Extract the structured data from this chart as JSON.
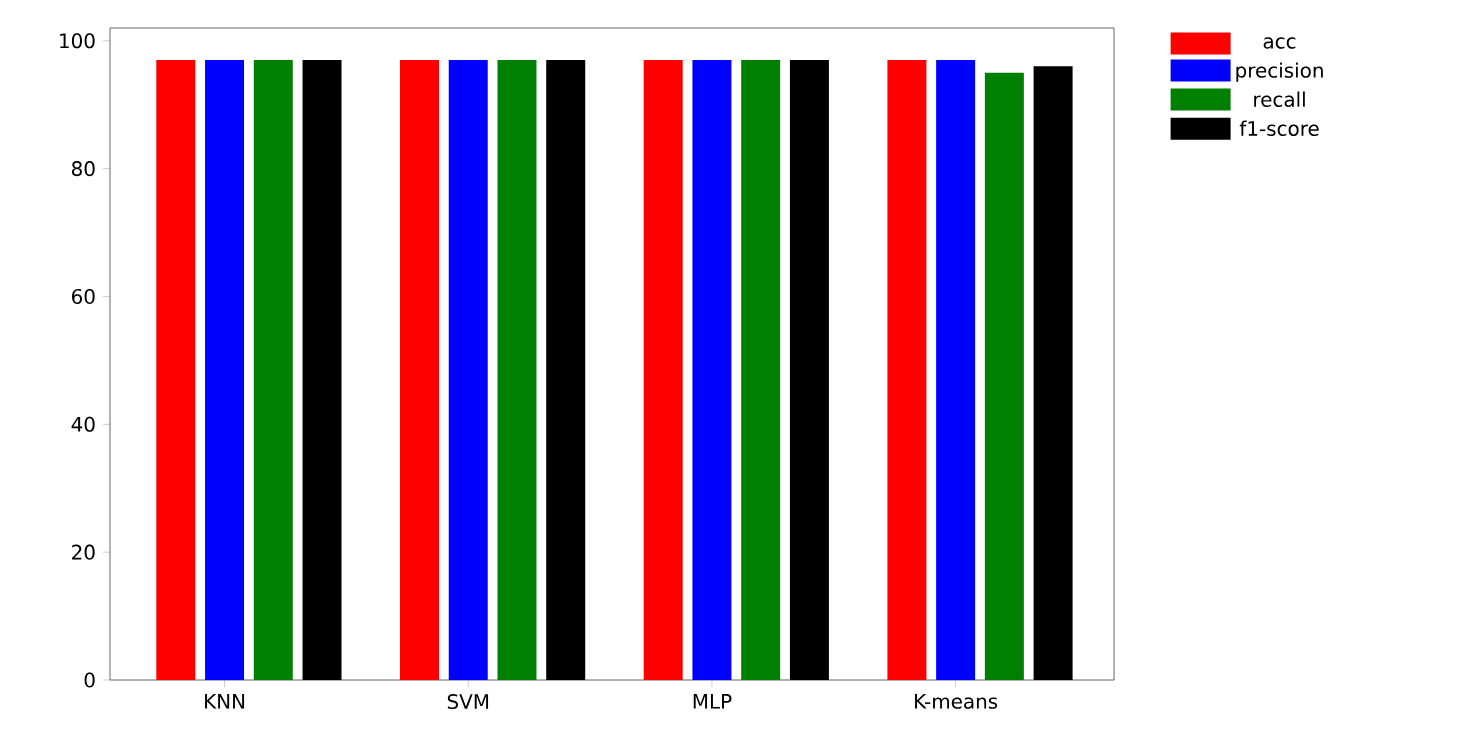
{
  "chart_data": {
    "type": "bar",
    "categories": [
      "KNN",
      "SVM",
      "MLP",
      "K-means"
    ],
    "series": [
      {
        "name": "acc",
        "color": "#ff0000",
        "values": [
          97,
          97,
          97,
          97
        ]
      },
      {
        "name": "precision",
        "color": "#0000ff",
        "values": [
          97,
          97,
          97,
          97
        ]
      },
      {
        "name": "recall",
        "color": "#008000",
        "values": [
          97,
          97,
          97,
          95
        ]
      },
      {
        "name": "f1-score",
        "color": "#000000",
        "values": [
          97,
          97,
          97,
          96
        ]
      }
    ],
    "ylim": [
      0,
      102
    ],
    "yticks": [
      0,
      20,
      40,
      60,
      80,
      100
    ],
    "grid": false,
    "legend": "top right"
  }
}
